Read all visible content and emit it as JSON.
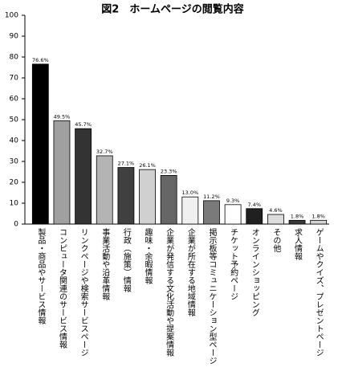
{
  "chart_data": {
    "type": "bar",
    "title": "図2　ホームページの閲覧内容",
    "categories": [
      "製品・商品やサービス情報",
      "コンピュータ関連のサービス情報",
      "リンクページや検索サービスページ",
      "事業活動や沿革情報",
      "行政（施策）情報",
      "趣味・余暇情報",
      "企業が発信する文化活動や提案情報",
      "企業が所在する地域情報",
      "掲示板等コミュニケーション型ページ",
      "チケット予約ページ",
      "オンラインショッピング",
      "その他",
      "求人情報",
      "ゲームやクイズ、プレゼントページ"
    ],
    "values": [
      76.6,
      49.5,
      45.7,
      32.7,
      27.1,
      26.1,
      23.3,
      13.0,
      11.2,
      9.3,
      7.4,
      4.6,
      1.8,
      1.8
    ],
    "value_labels": [
      "76.6%",
      "49.5%",
      "45.7%",
      "32.7%",
      "27.1%",
      "26.1%",
      "23.3%",
      "13.0%",
      "11.2%",
      "9.3%",
      "7.4%",
      "4.6%",
      "1.8%",
      "1.8%"
    ],
    "colors": [
      "#000000",
      "#a0a0a0",
      "#333333",
      "#b4b4b4",
      "#404040",
      "#d0d0d0",
      "#666666",
      "#f0f0f0",
      "#7a7a7a",
      "#ffffff",
      "#202020",
      "#dcdcdc",
      "#383838",
      "#d4d4d4"
    ],
    "ylim": [
      0,
      100
    ],
    "yticks": [
      0,
      10,
      20,
      30,
      40,
      50,
      60,
      70,
      80,
      90,
      100
    ],
    "grid": false
  }
}
